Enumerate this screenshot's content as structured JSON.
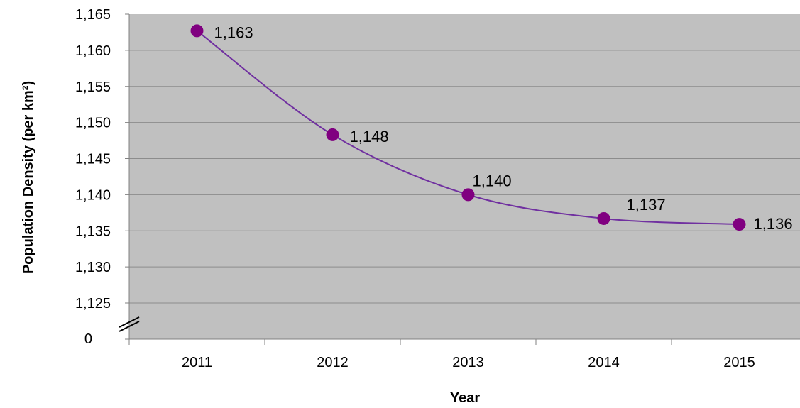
{
  "chart_data": {
    "type": "line",
    "xlabel": "Year",
    "ylabel": "Population Density (per km²)",
    "categories": [
      "2011",
      "2012",
      "2013",
      "2014",
      "2015"
    ],
    "series": [
      {
        "values": [
          1162.7,
          1148.3,
          1140.0,
          1136.7,
          1135.9
        ],
        "labels": [
          "1,163",
          "1,148",
          "1,140",
          "1,137",
          "1,136"
        ]
      }
    ],
    "ylim": [
      1125,
      1165
    ],
    "yticks": [
      "1,165",
      "1,160",
      "1,155",
      "1,150",
      "1,145",
      "1,140",
      "1,135",
      "1,130",
      "1,125"
    ],
    "y_break_label": "0",
    "grid": true,
    "smooth": true,
    "colors": {
      "plot_bg": "#c0c0c0",
      "line": "#7030a0",
      "marker": "#800080",
      "grid": "#8c8c8c"
    }
  }
}
